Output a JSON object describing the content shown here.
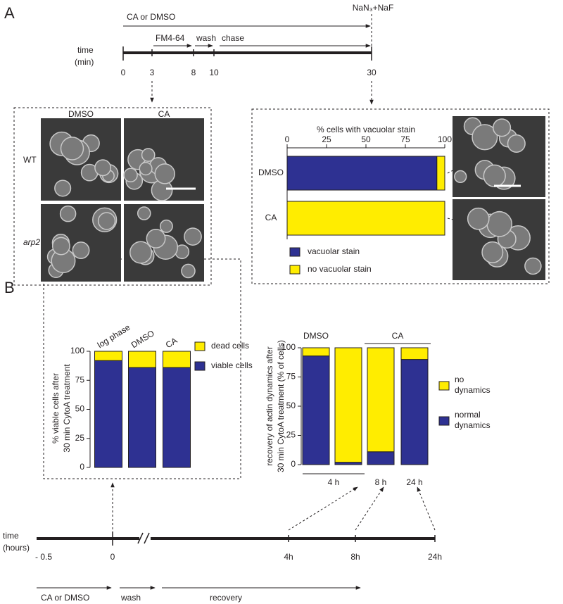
{
  "panel_labels": [
    "A",
    "B"
  ],
  "timeline_min": {
    "axis_label": [
      "time",
      "(min)"
    ],
    "ticks": [
      "0",
      "3",
      "8",
      "10",
      "30"
    ],
    "treatment": "CA or DMSO",
    "stop": "NaN₃+NaF",
    "steps": [
      "FM4-64",
      "wash",
      "chase"
    ]
  },
  "micrographs": {
    "columns": [
      "DMSO",
      "CA"
    ],
    "rows": [
      "WT",
      "arp2"
    ]
  },
  "chart_data": [
    {
      "type": "bar",
      "orientation": "horizontal",
      "stacked": true,
      "title": "% cells with vacuolar stain",
      "categories": [
        "DMSO",
        "CA"
      ],
      "series": [
        {
          "name": "vacuolar stain",
          "color": "#2e3192",
          "values": [
            95,
            0
          ]
        },
        {
          "name": "no vacuolar stain",
          "color": "#ffed00",
          "values": [
            5,
            100
          ]
        }
      ],
      "xlim": [
        0,
        100
      ],
      "xticks": [
        0,
        25,
        50,
        75,
        100
      ]
    },
    {
      "type": "bar",
      "stacked": true,
      "ylabel": [
        "% viable  cells after",
        "30 min CytoA treatment"
      ],
      "categories": [
        "log phase",
        "DMSO",
        "CA"
      ],
      "series": [
        {
          "name": "viable cells",
          "color": "#2e3192",
          "values": [
            92,
            86,
            86
          ]
        },
        {
          "name": "dead cells",
          "color": "#ffed00",
          "values": [
            8,
            14,
            14
          ]
        }
      ],
      "ylim": [
        0,
        100
      ],
      "yticks": [
        0,
        25,
        50,
        75,
        100
      ]
    },
    {
      "type": "bar",
      "stacked": true,
      "ylabel": [
        "recovery of actin dynamics after",
        "30 min CytoA treatment (% of cells)"
      ],
      "treatments": [
        "DMSO",
        "CA"
      ],
      "recovery_times": [
        "4 h",
        "8 h",
        "24 h"
      ],
      "series": [
        {
          "name": "normal dynamics",
          "color": "#2e3192",
          "values": [
            93,
            2,
            11,
            90
          ]
        },
        {
          "name": "no dynamics",
          "color": "#ffed00",
          "values": [
            7,
            98,
            89,
            10
          ]
        }
      ],
      "ylim": [
        0,
        100
      ],
      "yticks": [
        0,
        25,
        50,
        75,
        100
      ]
    }
  ],
  "timeline_hours": {
    "axis_label": [
      "time",
      "(hours)"
    ],
    "ticks": [
      "- 0.5",
      "0",
      "4h",
      "8h",
      "24h"
    ],
    "steps": [
      "CA or DMSO",
      "wash",
      "recovery"
    ]
  }
}
